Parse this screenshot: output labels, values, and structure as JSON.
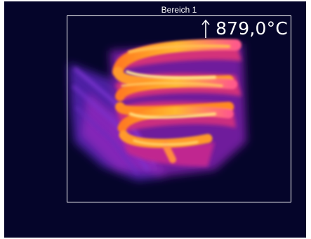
{
  "roi": {
    "label": "Bereich 1",
    "max_temperature": "879,0°C",
    "indicator_icon": "arrow-up-icon"
  },
  "colors": {
    "background": "#05052a",
    "roi_border": "#ffffff",
    "text": "#ffffff",
    "palette": [
      "#2a0a6a",
      "#6a1aa8",
      "#c0208a",
      "#ff5a3a",
      "#ffb020",
      "#fff4a0"
    ]
  }
}
